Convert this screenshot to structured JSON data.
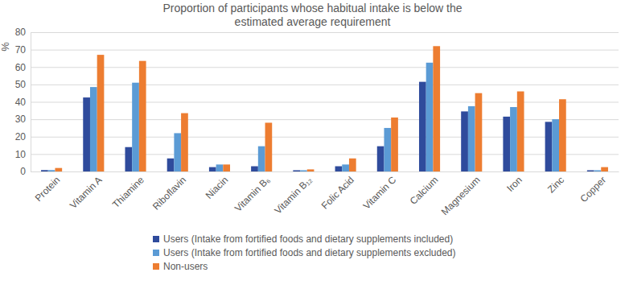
{
  "chart_data": {
    "type": "bar",
    "title": "Proportion of participants whose habitual intake is below the estimated average requirement",
    "ylabel": "%",
    "categories": [
      "Protein",
      "Vitamin A",
      "Thiamine",
      "Riboflavin",
      "Niacin",
      "Vitamin B₆",
      "Vitamin B₁₂",
      "Folic Acid",
      "Vitamin C",
      "Calcium",
      "Magnesium",
      "Iron",
      "Zinc",
      "Copper"
    ],
    "series": [
      {
        "name": "Users (Intake from fortified foods and dietary supplements included)",
        "color": "#2F4B9C",
        "values": [
          0.8,
          42.5,
          14,
          7.5,
          2.5,
          3,
          0.7,
          3,
          14.5,
          51.5,
          34.5,
          31.5,
          28.5,
          0.7
        ]
      },
      {
        "name": "Users (Intake from fortified foods and dietary supplements excluded)",
        "color": "#5B9BD5",
        "values": [
          0.8,
          48.5,
          51,
          22,
          4,
          14.5,
          0.7,
          4,
          25,
          62.5,
          37.5,
          37,
          30,
          0.7
        ]
      },
      {
        "name": "Non-users",
        "color": "#ED7D31",
        "values": [
          2,
          67,
          63.5,
          33.5,
          4,
          28,
          1.2,
          7.5,
          31,
          72,
          45,
          46,
          41.5,
          2.5
        ]
      }
    ],
    "ylim": [
      0,
      80
    ],
    "yticks": [
      0,
      10,
      20,
      30,
      40,
      50,
      60,
      70,
      80
    ],
    "grid": true,
    "legend": "bottom"
  }
}
